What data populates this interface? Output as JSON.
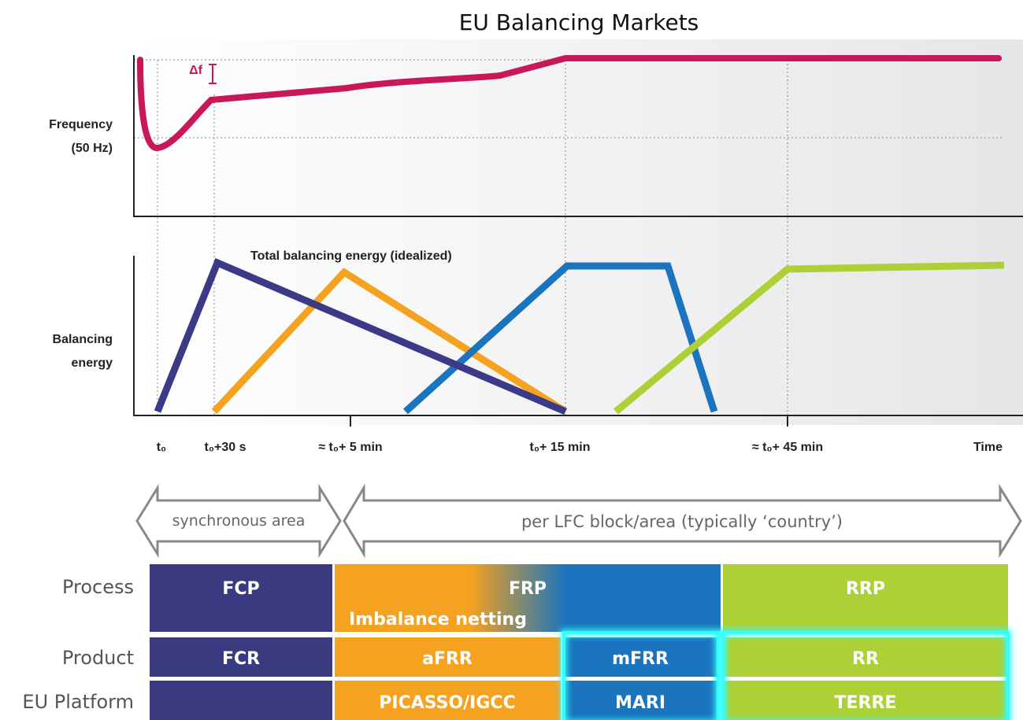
{
  "header": {
    "title": "EU Balancing Markets"
  },
  "frequency_panel": {
    "axis_label_1": "Frequency",
    "axis_label_2": "(50 Hz)",
    "delta_label": "Δf"
  },
  "energy_panel": {
    "axis_label_1": "Balancing",
    "axis_label_2": "energy",
    "annotation": "Total balancing energy (idealized)"
  },
  "time_axis": {
    "labels": [
      "t₀",
      "t₀+30 s",
      "≈ t₀+ 5 min",
      "t₀+ 15 min",
      "≈ t₀+ 45 min",
      "Time"
    ]
  },
  "scopes": [
    "synchronous area",
    "per LFC block/area (typically ‘country’)"
  ],
  "table": {
    "row_labels": [
      "Process",
      "Product",
      "EU Platform"
    ],
    "process": [
      "FCP",
      "FRP",
      "Imbalance netting",
      "RRP"
    ],
    "product": [
      "FCR",
      "aFRR",
      "mFRR",
      "RR"
    ],
    "platform": [
      "PICASSO/IGCC",
      "MARI",
      "TERRE"
    ]
  }
}
